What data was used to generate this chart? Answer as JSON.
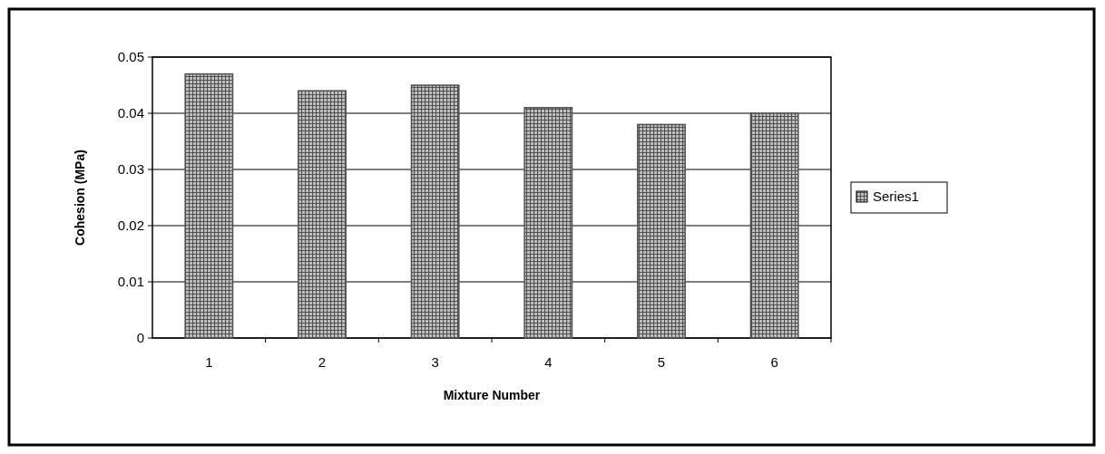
{
  "chart_data": {
    "type": "bar",
    "xlabel": "Mixture Number",
    "ylabel": "Cohesion (MPa)",
    "categories": [
      "1",
      "2",
      "3",
      "4",
      "5",
      "6"
    ],
    "series": [
      {
        "name": "Series1",
        "color": "#505050",
        "values": [
          0.047,
          0.044,
          0.045,
          0.041,
          0.038,
          0.04
        ]
      }
    ],
    "ylim": [
      0,
      0.05
    ],
    "yticks": [
      0,
      0.01,
      0.02,
      0.03,
      0.04,
      0.05
    ],
    "grid": "y",
    "legend": "right"
  }
}
